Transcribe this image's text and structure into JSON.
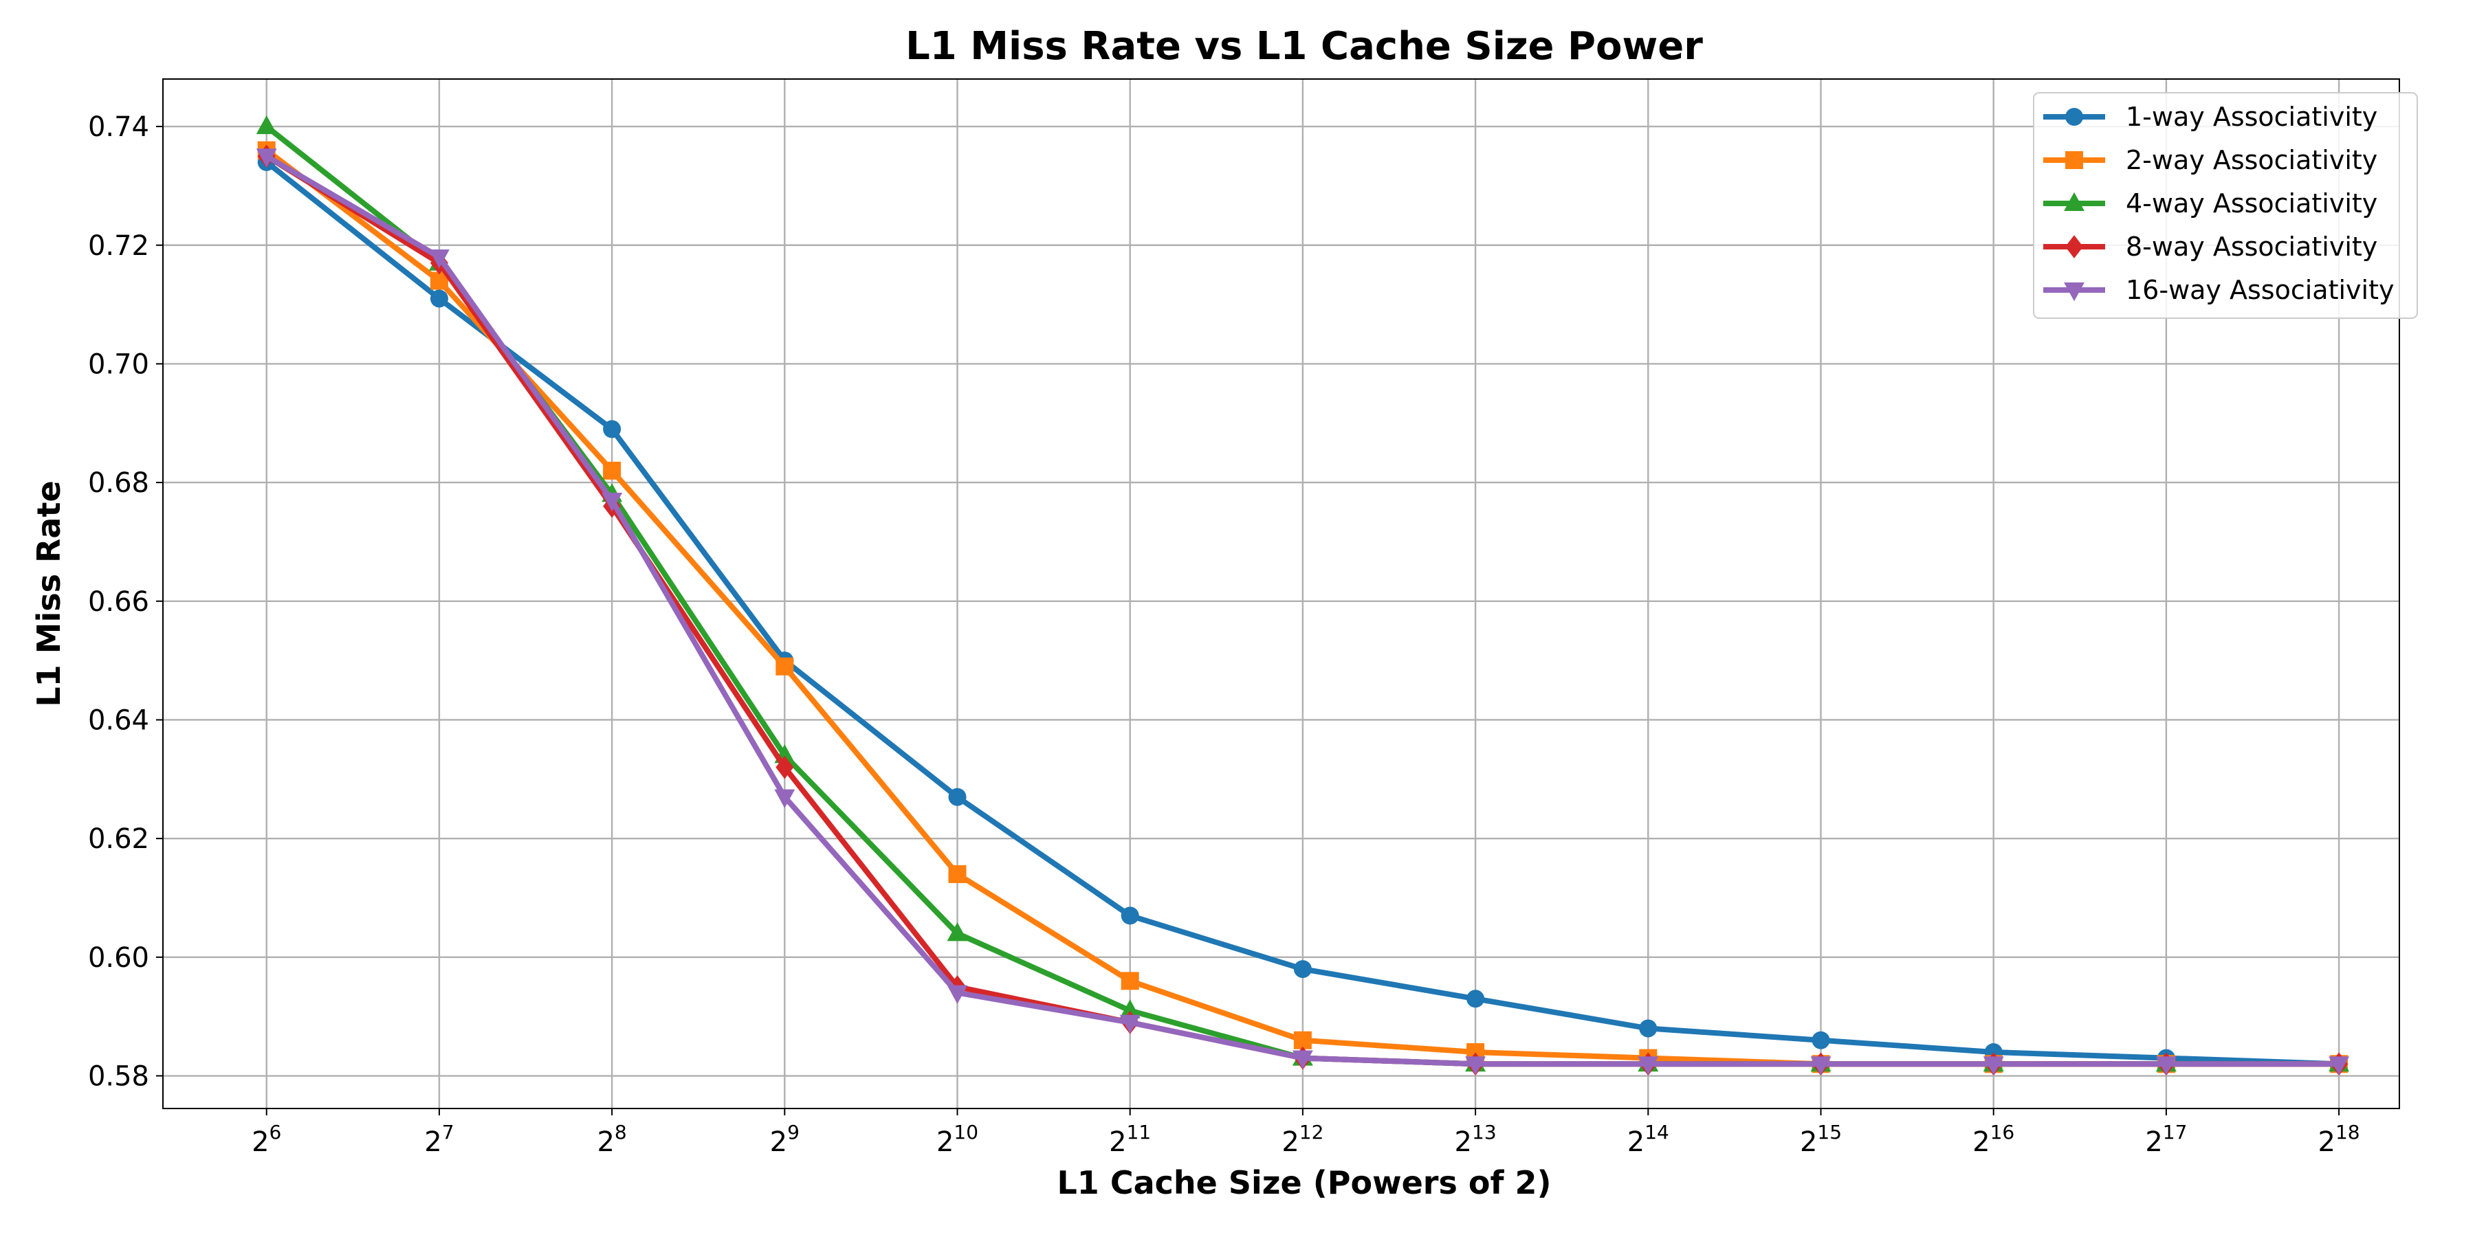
{
  "chart_data": {
    "type": "line",
    "title": "L1 Miss Rate vs L1 Cache Size Power",
    "xlabel": "L1 Cache Size (Powers of 2)",
    "ylabel": "L1 Miss Rate",
    "x": [
      6,
      7,
      8,
      9,
      10,
      11,
      12,
      13,
      14,
      15,
      16,
      17,
      18
    ],
    "x_tick_base": "2",
    "x_tick_exponents": [
      "6",
      "7",
      "8",
      "9",
      "10",
      "11",
      "12",
      "13",
      "14",
      "15",
      "16",
      "17",
      "18"
    ],
    "y_ticks": [
      "0.58",
      "0.60",
      "0.62",
      "0.64",
      "0.66",
      "0.68",
      "0.70",
      "0.72",
      "0.74"
    ],
    "y_tick_values": [
      0.58,
      0.6,
      0.62,
      0.64,
      0.66,
      0.68,
      0.7,
      0.72,
      0.74
    ],
    "xlim": [
      5.4,
      18.35
    ],
    "ylim": [
      0.5745,
      0.748
    ],
    "grid": true,
    "legend_position": "top-right",
    "series": [
      {
        "name": "1-way Associativity",
        "color": "#1f77b4",
        "marker": "circle",
        "values": [
          0.734,
          0.711,
          0.689,
          0.65,
          0.627,
          0.607,
          0.598,
          0.593,
          0.588,
          0.586,
          0.584,
          0.583,
          0.582
        ]
      },
      {
        "name": "2-way Associativity",
        "color": "#ff7f0e",
        "marker": "square",
        "values": [
          0.736,
          0.714,
          0.682,
          0.649,
          0.614,
          0.596,
          0.586,
          0.584,
          0.583,
          0.582,
          0.582,
          0.582,
          0.582
        ]
      },
      {
        "name": "4-way Associativity",
        "color": "#2ca02c",
        "marker": "triangle-up",
        "values": [
          0.74,
          0.717,
          0.678,
          0.634,
          0.604,
          0.591,
          0.583,
          0.582,
          0.582,
          0.582,
          0.582,
          0.582,
          0.582
        ]
      },
      {
        "name": "8-way Associativity",
        "color": "#d62728",
        "marker": "diamond",
        "values": [
          0.735,
          0.717,
          0.676,
          0.632,
          0.595,
          0.589,
          0.583,
          0.582,
          0.582,
          0.582,
          0.582,
          0.582,
          0.582
        ]
      },
      {
        "name": "16-way Associativity",
        "color": "#9467bd",
        "marker": "triangle-down",
        "values": [
          0.735,
          0.718,
          0.677,
          0.627,
          0.594,
          0.589,
          0.583,
          0.582,
          0.582,
          0.582,
          0.582,
          0.582,
          0.582
        ]
      }
    ]
  }
}
